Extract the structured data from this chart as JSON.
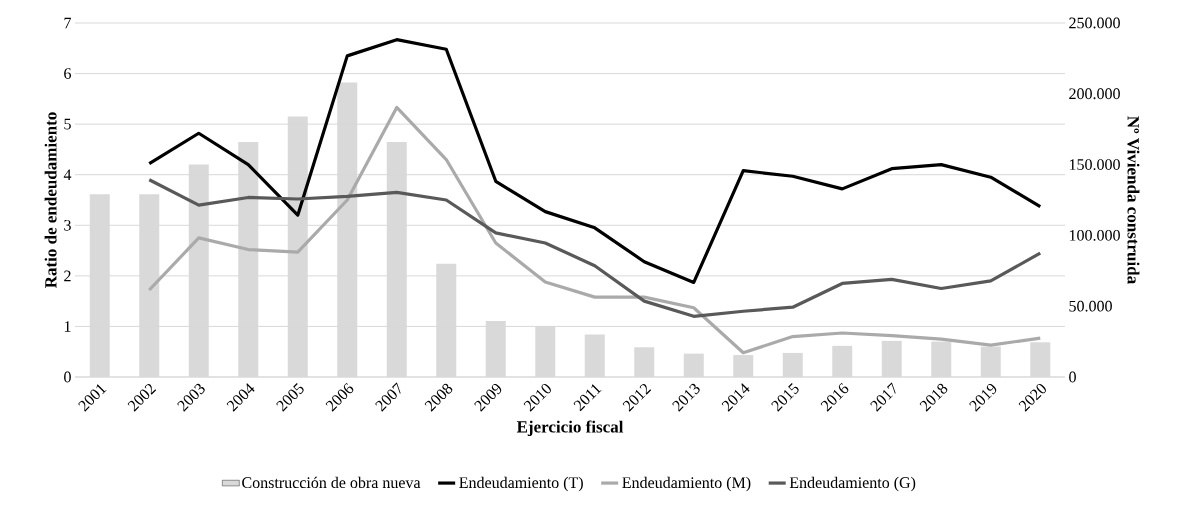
{
  "chart_data": {
    "type": "line",
    "xlabel": "Ejercicio fiscal",
    "ylabel": "Ratio de endeudamiento",
    "y2label": "Nº Vivienda construida",
    "categories": [
      "2001",
      "2002",
      "2003",
      "2004",
      "2005",
      "2006",
      "2007",
      "2008",
      "2009",
      "2010",
      "2011",
      "2012",
      "2013",
      "2014",
      "2015",
      "2016",
      "2017",
      "2018",
      "2019",
      "2020"
    ],
    "series": [
      {
        "name": "Construcción de obra nueva",
        "type": "bar",
        "axis": "y2",
        "color": "#d9d9d9",
        "values": [
          129000,
          129000,
          150000,
          166000,
          184000,
          208000,
          166000,
          80000,
          39500,
          36000,
          30000,
          21000,
          16500,
          15500,
          17000,
          22000,
          25500,
          25000,
          21500,
          24500
        ]
      },
      {
        "name": "Endeudamiento (T)",
        "color": "#000000",
        "values": [
          null,
          4.22,
          4.82,
          4.2,
          3.2,
          6.35,
          6.67,
          6.48,
          3.87,
          3.27,
          2.95,
          2.28,
          1.87,
          4.08,
          3.97,
          3.72,
          4.12,
          4.2,
          3.95,
          3.37
        ]
      },
      {
        "name": "Endeudamiento (M)",
        "color": "#aaaaaa",
        "values": [
          null,
          1.72,
          2.75,
          2.52,
          2.47,
          3.5,
          5.33,
          4.3,
          2.65,
          1.88,
          1.58,
          1.58,
          1.37,
          0.48,
          0.8,
          0.87,
          0.82,
          0.75,
          0.63,
          0.77
        ]
      },
      {
        "name": "Endeudamiento (G)",
        "color": "#595959",
        "values": [
          null,
          3.9,
          3.4,
          3.55,
          3.52,
          3.57,
          3.65,
          3.5,
          2.85,
          2.65,
          2.2,
          1.5,
          1.2,
          1.3,
          1.38,
          1.85,
          1.93,
          1.75,
          1.9,
          2.45
        ]
      }
    ],
    "ylim": [
      0,
      7
    ],
    "yticks": [
      0,
      1,
      2,
      3,
      4,
      5,
      6,
      7
    ],
    "y2lim": [
      0,
      250000
    ],
    "y2ticks": [
      {
        "value": 0,
        "label": "0"
      },
      {
        "value": 50000,
        "label": "50.000"
      },
      {
        "value": 100000,
        "label": "100.000"
      },
      {
        "value": 150000,
        "label": "150.000"
      },
      {
        "value": 200000,
        "label": "200.000"
      },
      {
        "value": 250000,
        "label": "250.000"
      }
    ],
    "grid": "y",
    "legend": "bottom",
    "marker": "none"
  }
}
